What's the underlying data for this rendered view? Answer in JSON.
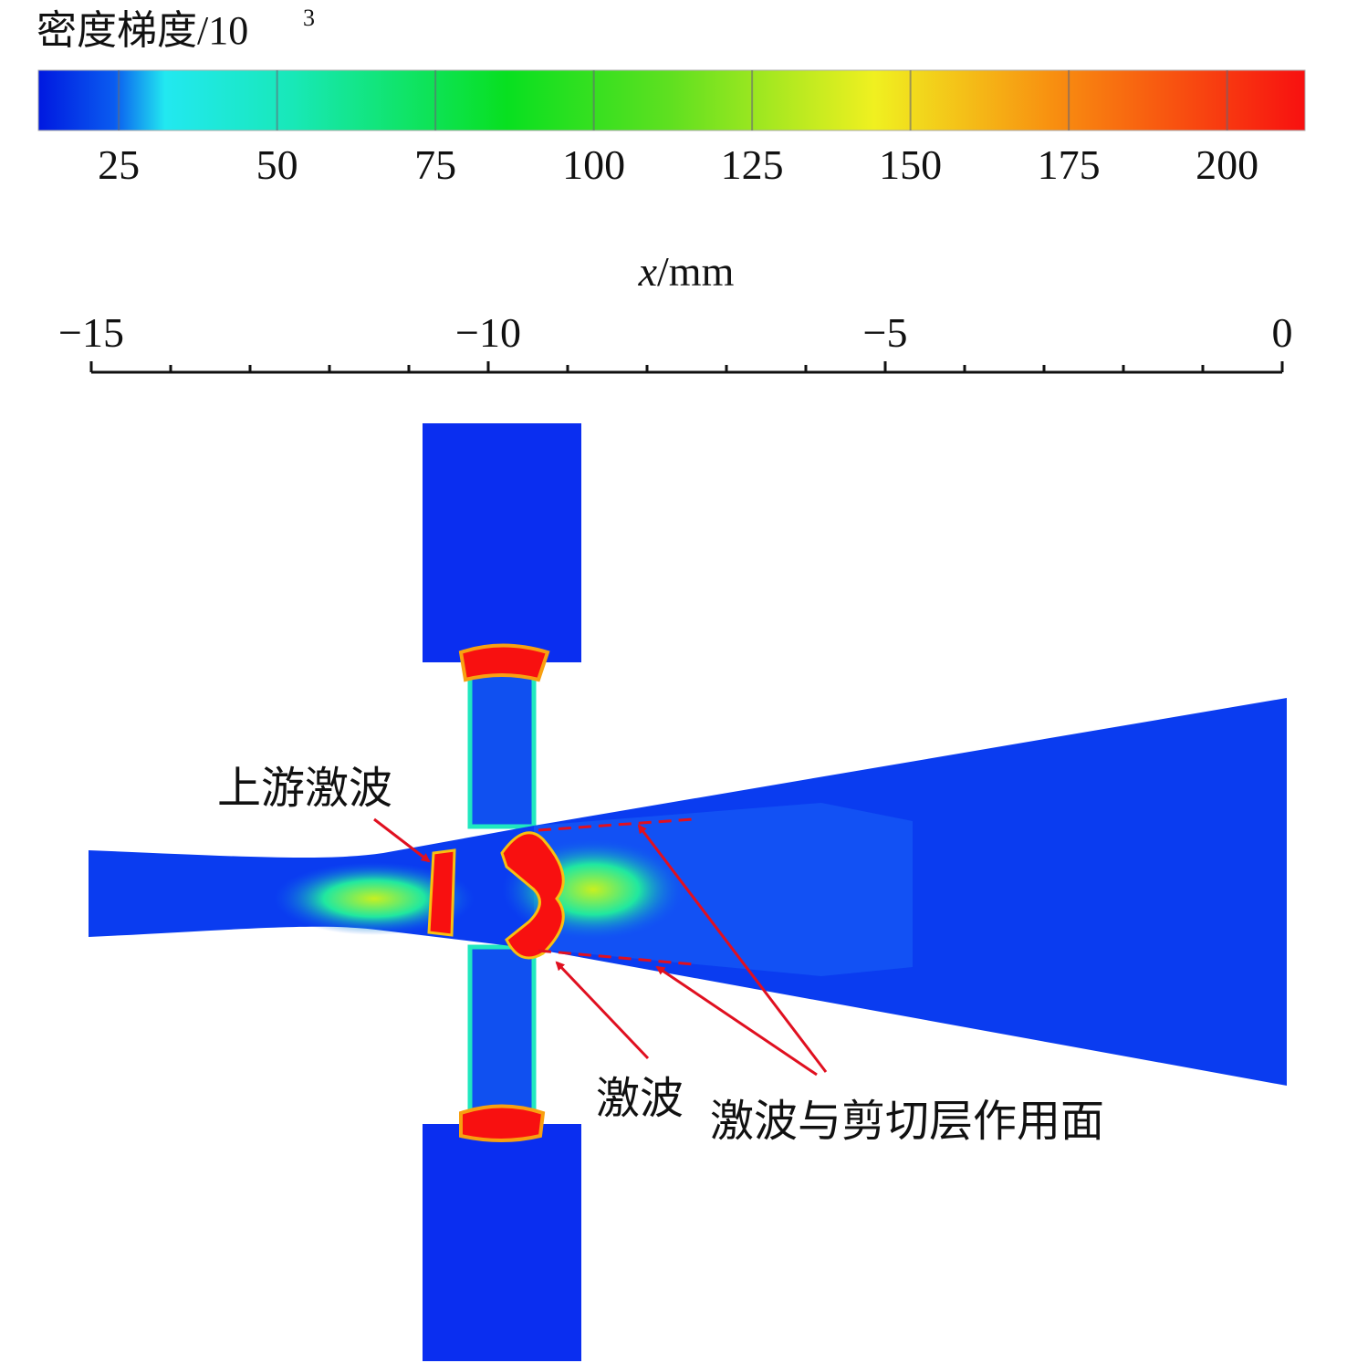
{
  "colorbar": {
    "title": "密度梯度/10",
    "title_sup": "3",
    "lim": [
      12.3,
      212.3
    ],
    "ticks": [
      25,
      50,
      75,
      100,
      125,
      150,
      175,
      200
    ]
  },
  "x_axis": {
    "label_var": "x",
    "label_unit": "/mm",
    "lim": [
      -15,
      0
    ],
    "ticks": [
      {
        "value": -15,
        "label": "−15"
      },
      {
        "value": -10,
        "label": "−10"
      },
      {
        "value": -5,
        "label": "−5"
      },
      0
    ],
    "minor_ticks": [
      -14,
      -13,
      -12,
      -11,
      -9,
      -8,
      -7,
      -6,
      -4,
      -3,
      -2,
      -1
    ]
  },
  "annotations": {
    "upstream_shock": "上游激波",
    "shock": "激波",
    "interaction": "激波与剪切层作用面"
  }
}
